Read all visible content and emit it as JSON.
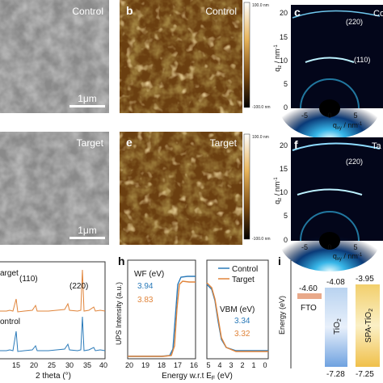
{
  "panels": {
    "a": {
      "label_top": "Control",
      "scalebar": "1μm"
    },
    "b": {
      "letter": "b",
      "label": "Control",
      "cbar_top": "100.0 nm",
      "cbar_bottom": "-100.0 nm"
    },
    "c": {
      "letter": "c",
      "label": "Co",
      "ylabel": "q",
      "ysub": "z",
      "yunit": " / nm",
      "yexp": "-1",
      "yticks": [
        "20",
        "15",
        "10",
        "5",
        "0"
      ],
      "xticks": [
        "-5",
        "0",
        "5"
      ],
      "xlabel": "q",
      "xsub": "xy",
      "xunit": " / nm",
      "xexp": "-1",
      "ring1": "(220)",
      "ring2": "(110)"
    },
    "d": {
      "label": "Target",
      "scalebar": "1μm"
    },
    "e": {
      "letter": "e",
      "label": "Target",
      "cbar_top": "100.0 nm",
      "cbar_bottom": "-100.0 nm"
    },
    "f": {
      "letter": "f",
      "label": "Ta",
      "yticks": [
        "20",
        "15",
        "10",
        "5",
        "0"
      ],
      "xticks": [
        "-5",
        "0",
        "5"
      ],
      "ring1": "(220)",
      "ring2": "(110)",
      "ylabel": "q",
      "ysub": "z",
      "yunit": " / nm",
      "yexp": "-1",
      "xlabel": "q",
      "xsub": "xy",
      "xunit": " / nm",
      "xexp": "-1"
    },
    "g": {
      "xlabel": "2 theta (°)",
      "xticks": [
        "15",
        "20",
        "25",
        "30",
        "35",
        "40"
      ],
      "label_target": "arget",
      "label_control": "ontrol",
      "peak1": "(110)",
      "peak2": "(220)"
    },
    "h": {
      "letter": "h",
      "ylabel": "UPS Intensity (a.u.)",
      "xlabel": "Energy w.r.t E",
      "xsub": "F",
      "xunit": " (eV)",
      "xticks_left": [
        "20",
        "19",
        "18",
        "17",
        "16"
      ],
      "xticks_right": [
        "5",
        "4",
        "3",
        "2",
        "1",
        "0"
      ],
      "wf_title": "WF (eV)",
      "wf_control": "3.94",
      "wf_target": "3.83",
      "vbm_title": "VBM (eV)",
      "vbm_control": "3.34",
      "vbm_target": "3.32",
      "legend": [
        "Control",
        "Target"
      ]
    },
    "i": {
      "letter": "i",
      "ylabel": "Energy (eV)",
      "fto_value": "-4.60",
      "fto_label": "FTO",
      "tio2_top": "-4.08",
      "tio2_bottom": "-7.28",
      "tio2_label": "TiO",
      "spa_top": "-3.95",
      "spa_bottom": "-7.25",
      "spa_label": "SPA-TiO"
    }
  },
  "colors": {
    "control": "#2a7ab9",
    "target": "#e0843a",
    "fto": "#e9a98a"
  },
  "chart_data": [
    {
      "type": "line",
      "panel": "g",
      "xlabel": "2 theta (°)",
      "xlim": [
        10,
        40
      ],
      "series": [
        {
          "name": "Target",
          "peaks_x": [
            14.1,
            28.4
          ]
        },
        {
          "name": "Control",
          "peaks_x": [
            14.1,
            28.4
          ]
        }
      ],
      "annotations": [
        "(110)",
        "(220)"
      ]
    },
    {
      "type": "line",
      "panel": "h",
      "xlabel": "Energy w.r.t EF (eV)",
      "series": [
        {
          "name": "Control",
          "wf": 3.94,
          "vbm": 3.34
        },
        {
          "name": "Target",
          "wf": 3.83,
          "vbm": 3.32
        }
      ]
    }
  ]
}
